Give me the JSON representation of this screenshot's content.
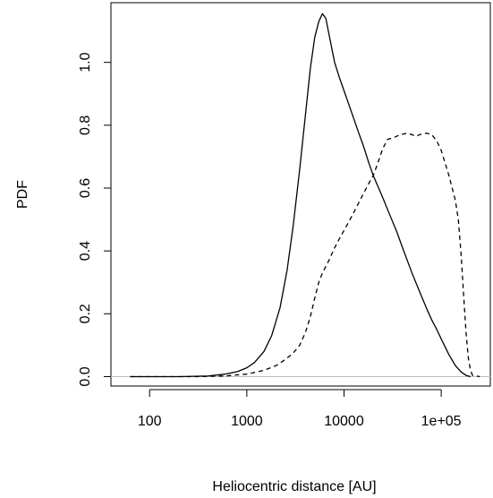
{
  "chart_data": {
    "type": "line",
    "xlabel": "Heliocentric distance [AU]",
    "ylabel": "PDF",
    "x_scale": "log",
    "xlim": [
      40,
      320000
    ],
    "ylim": [
      -0.03,
      1.19
    ],
    "x_ticks": [
      100,
      1000,
      10000,
      100000
    ],
    "x_tick_labels": [
      "100",
      "1000",
      "10000",
      "1e+05"
    ],
    "y_ticks": [
      0.0,
      0.2,
      0.4,
      0.6,
      0.8,
      1.0
    ],
    "y_tick_labels": [
      "0.0",
      "0.2",
      "0.4",
      "0.6",
      "0.8",
      "1.0"
    ],
    "reference_line": {
      "y": 0,
      "color": "#bebebe"
    },
    "grid": false,
    "series": [
      {
        "style": "solid",
        "color": "#000000",
        "points": [
          [
            63,
            0.0
          ],
          [
            200,
            0.0
          ],
          [
            400,
            0.002
          ],
          [
            600,
            0.008
          ],
          [
            800,
            0.016
          ],
          [
            1000,
            0.028
          ],
          [
            1200,
            0.045
          ],
          [
            1500,
            0.08
          ],
          [
            1800,
            0.13
          ],
          [
            2200,
            0.22
          ],
          [
            2600,
            0.34
          ],
          [
            3000,
            0.48
          ],
          [
            3500,
            0.66
          ],
          [
            4000,
            0.83
          ],
          [
            4500,
            0.98
          ],
          [
            5000,
            1.08
          ],
          [
            5500,
            1.13
          ],
          [
            6000,
            1.155
          ],
          [
            6500,
            1.14
          ],
          [
            7000,
            1.09
          ],
          [
            8000,
            1.0
          ],
          [
            9000,
            0.95
          ],
          [
            10000,
            0.91
          ],
          [
            12000,
            0.84
          ],
          [
            14000,
            0.78
          ],
          [
            16000,
            0.73
          ],
          [
            18000,
            0.68
          ],
          [
            20000,
            0.64
          ],
          [
            25000,
            0.57
          ],
          [
            30000,
            0.51
          ],
          [
            35000,
            0.46
          ],
          [
            40000,
            0.41
          ],
          [
            50000,
            0.33
          ],
          [
            60000,
            0.27
          ],
          [
            70000,
            0.22
          ],
          [
            80000,
            0.18
          ],
          [
            90000,
            0.15
          ],
          [
            100000,
            0.12
          ],
          [
            120000,
            0.07
          ],
          [
            140000,
            0.035
          ],
          [
            160000,
            0.015
          ],
          [
            180000,
            0.004
          ],
          [
            200000,
            0.0
          ]
        ]
      },
      {
        "style": "dashed",
        "color": "#000000",
        "points": [
          [
            63,
            0.0
          ],
          [
            300,
            0.0
          ],
          [
            600,
            0.002
          ],
          [
            1000,
            0.008
          ],
          [
            1500,
            0.02
          ],
          [
            2000,
            0.035
          ],
          [
            2500,
            0.055
          ],
          [
            3000,
            0.075
          ],
          [
            3500,
            0.1
          ],
          [
            4000,
            0.14
          ],
          [
            4500,
            0.19
          ],
          [
            5000,
            0.25
          ],
          [
            5500,
            0.3
          ],
          [
            6000,
            0.33
          ],
          [
            7000,
            0.37
          ],
          [
            8000,
            0.41
          ],
          [
            9000,
            0.44
          ],
          [
            10000,
            0.465
          ],
          [
            12000,
            0.51
          ],
          [
            14000,
            0.55
          ],
          [
            16000,
            0.585
          ],
          [
            18000,
            0.615
          ],
          [
            20000,
            0.64
          ],
          [
            22000,
            0.675
          ],
          [
            25000,
            0.725
          ],
          [
            28000,
            0.755
          ],
          [
            32000,
            0.76
          ],
          [
            38000,
            0.77
          ],
          [
            45000,
            0.775
          ],
          [
            50000,
            0.77
          ],
          [
            55000,
            0.765
          ],
          [
            60000,
            0.77
          ],
          [
            70000,
            0.775
          ],
          [
            80000,
            0.77
          ],
          [
            90000,
            0.75
          ],
          [
            100000,
            0.72
          ],
          [
            120000,
            0.64
          ],
          [
            140000,
            0.56
          ],
          [
            150000,
            0.5
          ],
          [
            160000,
            0.39
          ],
          [
            170000,
            0.26
          ],
          [
            180000,
            0.14
          ],
          [
            190000,
            0.06
          ],
          [
            200000,
            0.02
          ],
          [
            210000,
            0.004
          ],
          [
            250000,
            0.0
          ]
        ]
      }
    ]
  }
}
